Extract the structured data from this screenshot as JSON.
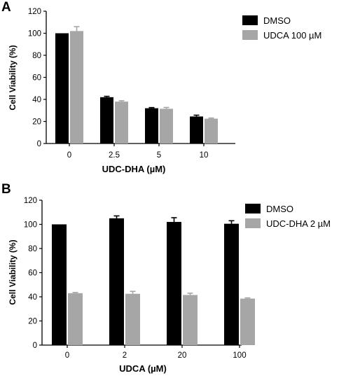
{
  "colors": {
    "dmso": "#000000",
    "treated": "#a6a6a6"
  },
  "chart_data": [
    {
      "panel": "A",
      "type": "bar",
      "xlabel": "UDC-DHA (µM)",
      "ylabel": "Cell Viability (%)",
      "ylim": [
        0,
        120
      ],
      "yticks": [
        "0",
        "20",
        "40",
        "60",
        "80",
        "100",
        "120"
      ],
      "categories": [
        "0",
        "2.5",
        "5",
        "10"
      ],
      "legend_position": "top-right",
      "series": [
        {
          "name": "DMSO",
          "values": [
            100,
            42,
            32,
            24.5
          ],
          "errors": [
            0,
            0.8,
            0.6,
            1.2
          ]
        },
        {
          "name": "UDCA 100 µM",
          "values": [
            102,
            38,
            31.5,
            22.5
          ],
          "errors": [
            4,
            0.8,
            1.2,
            0.6
          ]
        }
      ]
    },
    {
      "panel": "B",
      "type": "bar",
      "xlabel": "UDCA (µM)",
      "ylabel": "Cell Viability (%)",
      "ylim": [
        0,
        120
      ],
      "yticks": [
        "0",
        "20",
        "40",
        "60",
        "80",
        "100",
        "120"
      ],
      "categories": [
        "0",
        "2",
        "20",
        "100"
      ],
      "legend_position": "top-right",
      "series": [
        {
          "name": "DMSO",
          "values": [
            100,
            105,
            102,
            100.5
          ],
          "errors": [
            0,
            2,
            3.5,
            2.5
          ]
        },
        {
          "name": "UDC-DHA 2 µM",
          "values": [
            43,
            42.5,
            41.5,
            38.5
          ],
          "errors": [
            0.6,
            2,
            1.5,
            0.6
          ]
        }
      ]
    }
  ]
}
